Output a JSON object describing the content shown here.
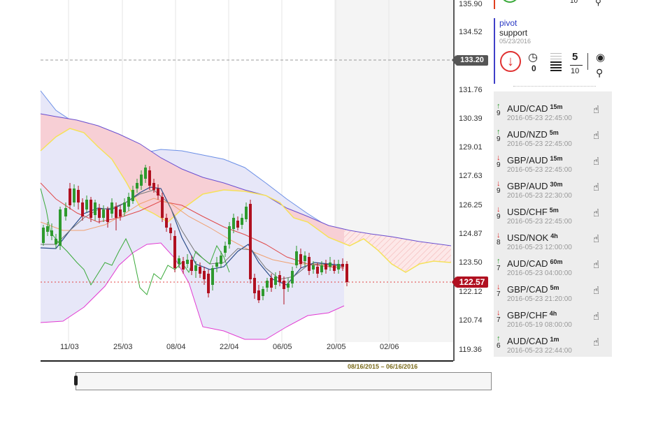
{
  "chart": {
    "price_axis": [
      "135.90",
      "134.52",
      "131.76",
      "130.39",
      "129.01",
      "127.63",
      "126.25",
      "124.87",
      "123.50",
      "122.12",
      "120.74",
      "119.36"
    ],
    "date_axis": [
      "11/03",
      "25/03",
      "08/04",
      "22/04",
      "06/05",
      "20/05",
      "02/06"
    ],
    "last_price": "122.57",
    "crosshair_price": "133.20",
    "navigator_range": "08/16/2015 – 06/16/2016"
  },
  "pattern_card": {
    "name": "pivot",
    "type": "support",
    "date": "05/23/2016",
    "direction": "down",
    "clock_value": "0",
    "score_num": "5",
    "score_den": "10",
    "top_partial_num": "10"
  },
  "alerts": [
    {
      "dir": "up",
      "count": "9",
      "symbol": "AUD/CAD",
      "interval": "15m",
      "time": "2016-05-23 22:45:00"
    },
    {
      "dir": "up",
      "count": "9",
      "symbol": "AUD/NZD",
      "interval": "5m",
      "time": "2016-05-23 22:45:00"
    },
    {
      "dir": "down",
      "count": "9",
      "symbol": "GBP/AUD",
      "interval": "15m",
      "time": "2016-05-23 22:45:00"
    },
    {
      "dir": "down",
      "count": "9",
      "symbol": "GBP/AUD",
      "interval": "30m",
      "time": "2016-05-23 22:30:00"
    },
    {
      "dir": "down",
      "count": "9",
      "symbol": "USD/CHF",
      "interval": "5m",
      "time": "2016-05-23 22:45:00"
    },
    {
      "dir": "down",
      "count": "8",
      "symbol": "USD/NOK",
      "interval": "4h",
      "time": "2016-05-23 12:00:00"
    },
    {
      "dir": "up",
      "count": "7",
      "symbol": "AUD/CAD",
      "interval": "60m",
      "time": "2016-05-23 04:00:00"
    },
    {
      "dir": "down",
      "count": "7",
      "symbol": "GBP/CAD",
      "interval": "5m",
      "time": "2016-05-23 21:20:00"
    },
    {
      "dir": "down",
      "count": "7",
      "symbol": "GBP/CHF",
      "interval": "4h",
      "time": "2016-05-19 08:00:00"
    },
    {
      "dir": "up",
      "count": "6",
      "symbol": "AUD/CAD",
      "interval": "1m",
      "time": "2016-05-23 22:44:00"
    }
  ],
  "colors": {
    "bull_candle": "#2e9a2e",
    "bear_candle": "#b01020",
    "cloud_bearish": "#f6c9cf",
    "bollinger_fill": "#e4e4f8",
    "last_price_flag": "#b01020",
    "pattern_accent": "#2a39c4"
  },
  "icons": {
    "direction": "down-arrow-circle-icon",
    "time": "clock-icon",
    "strength": "bars-icon",
    "view": "eye-icon",
    "zoom": "search-icon",
    "alert_action": "hand-check-icon"
  }
}
